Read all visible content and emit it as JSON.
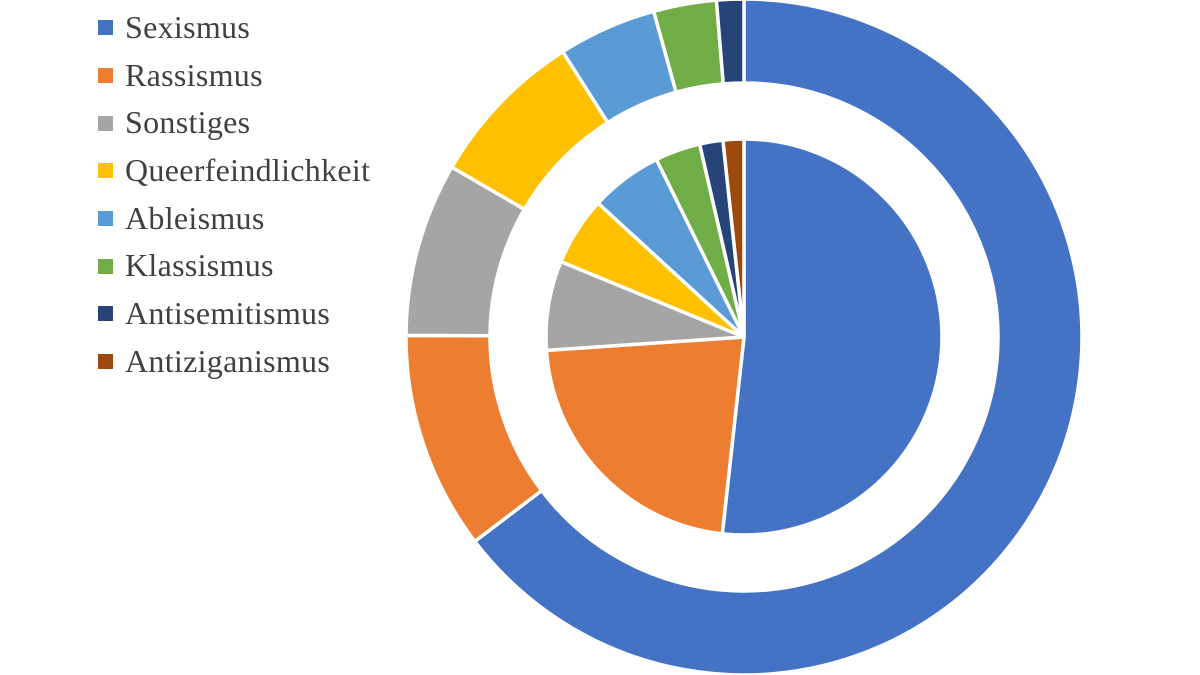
{
  "chart_data": {
    "type": "pie",
    "variant": "doughnut-ring-with-inner-pie",
    "categories": [
      "Sexismus",
      "Rassismus",
      "Sonstiges",
      "Queerfeindlichkeit",
      "Ableismus",
      "Klassismus",
      "Antisemitismus",
      "Antiziganismus"
    ],
    "colors": [
      "#4472C4",
      "#ED7D31",
      "#A5A5A5",
      "#FFC000",
      "#5B9BD5",
      "#70AD47",
      "#264478",
      "#9E480E"
    ],
    "series": [
      {
        "name": "inner-pie",
        "values_percent": [
          51.8,
          22.2,
          7.3,
          5.6,
          5.9,
          3.7,
          1.9,
          1.7
        ]
      },
      {
        "name": "outer-ring",
        "values_percent": [
          64.6,
          10.4,
          8.3,
          7.6,
          4.7,
          3.0,
          1.3,
          0.0
        ]
      }
    ],
    "start_angle_deg": 0,
    "direction": "clockwise",
    "legend_position": "left",
    "background_color": "#FFFFFF",
    "slice_gap_color": "#FFFFFF",
    "legend_text_color": "#404040"
  },
  "legend": {
    "items": [
      {
        "label": "Sexismus",
        "color": "#4472C4"
      },
      {
        "label": "Rassismus",
        "color": "#ED7D31"
      },
      {
        "label": "Sonstiges",
        "color": "#A5A5A5"
      },
      {
        "label": "Queerfeindlichkeit",
        "color": "#FFC000"
      },
      {
        "label": "Ableismus",
        "color": "#5B9BD5"
      },
      {
        "label": "Klassismus",
        "color": "#70AD47"
      },
      {
        "label": "Antisemitismus",
        "color": "#264478"
      },
      {
        "label": "Antiziganismus",
        "color": "#9E480E"
      }
    ]
  }
}
